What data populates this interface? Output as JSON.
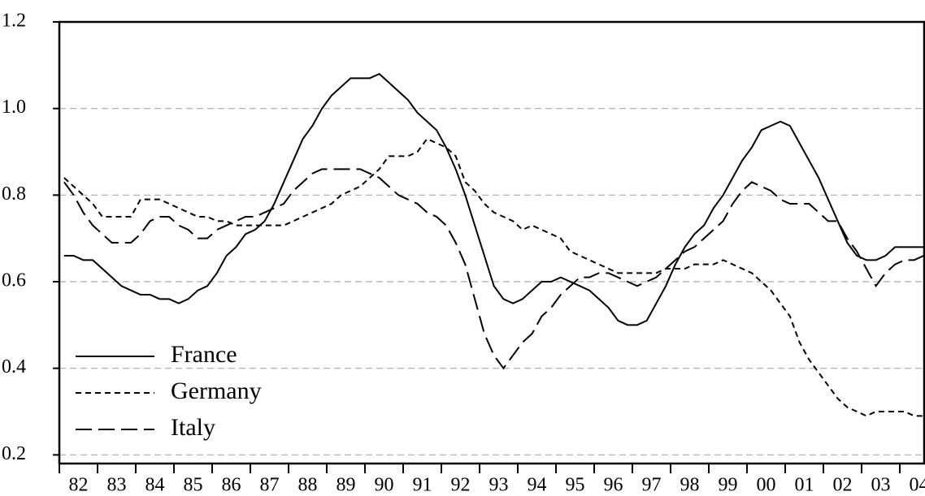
{
  "chart_data": {
    "type": "line",
    "categories": [
      null,
      "82",
      null,
      null,
      null,
      "83",
      null,
      null,
      null,
      "84",
      null,
      null,
      null,
      "85",
      null,
      null,
      null,
      "86",
      null,
      null,
      null,
      "87",
      null,
      null,
      null,
      "88",
      null,
      null,
      null,
      "89",
      null,
      null,
      null,
      "90",
      null,
      null,
      null,
      "91",
      null,
      null,
      null,
      "92",
      null,
      null,
      null,
      "93",
      null,
      null,
      null,
      "94",
      null,
      null,
      null,
      "95",
      null,
      null,
      null,
      "96",
      null,
      null,
      null,
      "97",
      null,
      null,
      null,
      "98",
      null,
      null,
      null,
      "99",
      null,
      null,
      null,
      "00",
      null,
      null,
      null,
      "01",
      null,
      null,
      null,
      "02",
      null,
      null,
      null,
      "03",
      null,
      null,
      null,
      "04",
      null
    ],
    "series": [
      {
        "name": "France",
        "color": "#000000",
        "linestyle": "solid",
        "values": [
          0.66,
          0.66,
          0.65,
          0.65,
          0.63,
          0.61,
          0.59,
          0.58,
          0.57,
          0.57,
          0.56,
          0.56,
          0.55,
          0.56,
          0.58,
          0.59,
          0.62,
          0.66,
          0.68,
          0.71,
          0.72,
          0.74,
          0.78,
          0.83,
          0.88,
          0.93,
          0.96,
          1.0,
          1.03,
          1.05,
          1.07,
          1.07,
          1.07,
          1.08,
          1.06,
          1.04,
          1.02,
          0.99,
          0.97,
          0.95,
          0.91,
          0.86,
          0.8,
          0.73,
          0.66,
          0.59,
          0.56,
          0.55,
          0.56,
          0.58,
          0.6,
          0.6,
          0.61,
          0.6,
          0.59,
          0.58,
          0.56,
          0.54,
          0.51,
          0.5,
          0.5,
          0.51,
          0.55,
          0.59,
          0.64,
          0.68,
          0.71,
          0.73,
          0.77,
          0.8,
          0.84,
          0.88,
          0.91,
          0.95,
          0.96,
          0.97,
          0.96,
          0.92,
          0.88,
          0.84,
          0.79,
          0.74,
          0.69,
          0.66,
          0.65,
          0.65,
          0.66,
          0.68,
          0.68,
          0.68,
          0.68
        ]
      },
      {
        "name": "Germany",
        "color": "#000000",
        "linestyle": "dotted",
        "values": [
          0.84,
          0.82,
          0.8,
          0.78,
          0.75,
          0.75,
          0.75,
          0.75,
          0.79,
          0.79,
          0.79,
          0.78,
          0.77,
          0.76,
          0.75,
          0.75,
          0.74,
          0.74,
          0.73,
          0.73,
          0.73,
          0.73,
          0.73,
          0.73,
          0.74,
          0.75,
          0.76,
          0.77,
          0.78,
          0.8,
          0.81,
          0.82,
          0.84,
          0.86,
          0.89,
          0.89,
          0.89,
          0.9,
          0.93,
          0.92,
          0.91,
          0.89,
          0.83,
          0.81,
          0.78,
          0.76,
          0.75,
          0.74,
          0.72,
          0.73,
          0.72,
          0.71,
          0.7,
          0.67,
          0.66,
          0.65,
          0.64,
          0.63,
          0.62,
          0.62,
          0.62,
          0.62,
          0.62,
          0.63,
          0.63,
          0.63,
          0.64,
          0.64,
          0.64,
          0.65,
          0.64,
          0.63,
          0.62,
          0.6,
          0.58,
          0.55,
          0.52,
          0.46,
          0.42,
          0.39,
          0.36,
          0.33,
          0.31,
          0.3,
          0.29,
          0.3,
          0.3,
          0.3,
          0.3,
          0.29,
          0.29
        ]
      },
      {
        "name": "Italy",
        "color": "#000000",
        "linestyle": "dashed",
        "values": [
          0.83,
          0.8,
          0.76,
          0.73,
          0.71,
          0.69,
          0.69,
          0.69,
          0.71,
          0.74,
          0.75,
          0.75,
          0.73,
          0.72,
          0.7,
          0.7,
          0.72,
          0.73,
          0.74,
          0.75,
          0.75,
          0.76,
          0.77,
          0.78,
          0.81,
          0.83,
          0.85,
          0.86,
          0.86,
          0.86,
          0.86,
          0.86,
          0.85,
          0.84,
          0.82,
          0.8,
          0.79,
          0.78,
          0.76,
          0.75,
          0.73,
          0.69,
          0.64,
          0.56,
          0.48,
          0.43,
          0.4,
          0.43,
          0.46,
          0.48,
          0.52,
          0.54,
          0.57,
          0.59,
          0.61,
          0.61,
          0.62,
          0.62,
          0.61,
          0.6,
          0.59,
          0.6,
          0.61,
          0.63,
          0.65,
          0.67,
          0.68,
          0.7,
          0.72,
          0.74,
          0.78,
          0.81,
          0.83,
          0.82,
          0.81,
          0.79,
          0.78,
          0.78,
          0.78,
          0.76,
          0.74,
          0.74,
          0.7,
          0.67,
          0.63,
          0.59,
          0.62,
          0.64,
          0.65,
          0.65,
          0.66
        ]
      }
    ],
    "ylim": [
      0.18,
      1.2
    ],
    "yticks": [
      0.2,
      0.4,
      0.6,
      0.8,
      {
        "value": 1,
        "label": "1.0"
      },
      1.2
    ],
    "grid": true,
    "legend": "lower left"
  }
}
